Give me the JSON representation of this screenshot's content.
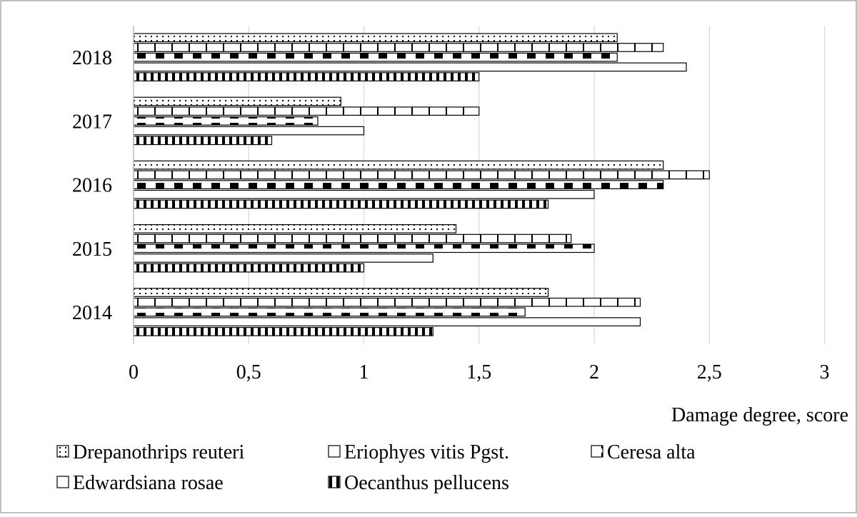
{
  "chart_data": {
    "type": "bar",
    "orientation": "horizontal",
    "categories": [
      "2018",
      "2017",
      "2016",
      "2015",
      "2014"
    ],
    "series": [
      {
        "name": "Drepanothrips reuteri",
        "values": [
          2.1,
          0.9,
          2.3,
          1.4,
          1.8
        ]
      },
      {
        "name": "Eriophyes vitis Pgst.",
        "values": [
          2.3,
          1.5,
          2.5,
          1.9,
          2.2
        ]
      },
      {
        "name": "Ceresa alta",
        "values": [
          2.1,
          0.8,
          2.3,
          2.0,
          1.7
        ]
      },
      {
        "name": "Edwardsiana rosae",
        "values": [
          2.4,
          1.0,
          2.0,
          1.3,
          2.2
        ]
      },
      {
        "name": "Oecanthus pellucens",
        "values": [
          1.5,
          0.6,
          1.8,
          1.0,
          1.3
        ]
      }
    ],
    "xlabel": "Damage degree, score",
    "xlim": [
      0,
      3
    ],
    "xticks": [
      "0",
      "0,5",
      "1",
      "1,5",
      "2",
      "2,5",
      "3"
    ],
    "grid": "vertical",
    "legend": "bottom"
  }
}
